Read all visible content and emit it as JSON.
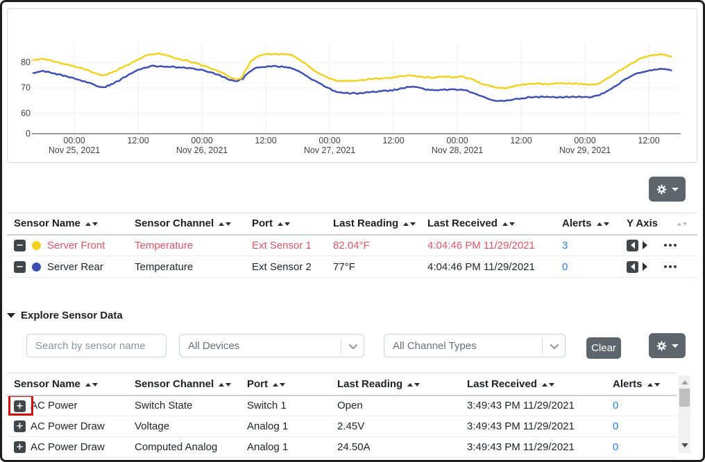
{
  "colors": {
    "series_front": "#f3d11f",
    "series_rear": "#3d4eb5",
    "alert_red": "#e25563",
    "link_blue": "#2680e3",
    "button_gray": "#5d656d",
    "highlight_red": "#cf0e0e"
  },
  "chart_data": {
    "type": "line",
    "title": "",
    "xlabel": "",
    "ylabel": "",
    "y_unit": "°F",
    "grid": true,
    "legend_position": "none (table below acts as legend)",
    "y_ticks": [
      80,
      70,
      60,
      0
    ],
    "x_ticks": [
      {
        "t": 7.7,
        "time": "00:00",
        "date": "Nov 25, 2021"
      },
      {
        "t": 19.7,
        "time": "12:00",
        "date": ""
      },
      {
        "t": 31.7,
        "time": "00:00",
        "date": "Nov 26, 2021"
      },
      {
        "t": 43.7,
        "time": "12:00",
        "date": ""
      },
      {
        "t": 55.7,
        "time": "00:00",
        "date": "Nov 27, 2021"
      },
      {
        "t": 67.7,
        "time": "12:00",
        "date": ""
      },
      {
        "t": 79.7,
        "time": "00:00",
        "date": "Nov 28, 2021"
      },
      {
        "t": 91.7,
        "time": "12:00",
        "date": ""
      },
      {
        "t": 103.7,
        "time": "00:00",
        "date": "Nov 29, 2021"
      },
      {
        "t": 115.7,
        "time": "12:00",
        "date": ""
      }
    ],
    "series": [
      {
        "name": "Server Front",
        "color": "#f3d11f",
        "points": [
          [
            0,
            80.6
          ],
          [
            1.8,
            81.4
          ],
          [
            4,
            80.1
          ],
          [
            6.5,
            78.9
          ],
          [
            9,
            77.6
          ],
          [
            11,
            76.2
          ],
          [
            12.7,
            74.8
          ],
          [
            13.6,
            74.9
          ],
          [
            15,
            76.1
          ],
          [
            17,
            78.2
          ],
          [
            19,
            80.3
          ],
          [
            21,
            82.4
          ],
          [
            22.3,
            83.1
          ],
          [
            24,
            83.2
          ],
          [
            26.7,
            81.6
          ],
          [
            29,
            80.4
          ],
          [
            31.2,
            79.1
          ],
          [
            33.4,
            77.5
          ],
          [
            35.5,
            75.8
          ],
          [
            37,
            74.0
          ],
          [
            38.1,
            73.3
          ],
          [
            39,
            73.6
          ],
          [
            40,
            77.0
          ],
          [
            41,
            80.5
          ],
          [
            42.4,
            82.5
          ],
          [
            43.7,
            83.0
          ],
          [
            45,
            83.1
          ],
          [
            47,
            83.0
          ],
          [
            48.5,
            82.7
          ],
          [
            49.8,
            81.4
          ],
          [
            52.4,
            77.3
          ],
          [
            55,
            74.1
          ],
          [
            57,
            72.7
          ],
          [
            59,
            72.5
          ],
          [
            60.7,
            72.6
          ],
          [
            62.9,
            73.2
          ],
          [
            65,
            73.5
          ],
          [
            67.2,
            73.8
          ],
          [
            69,
            74.3
          ],
          [
            70.7,
            74.8
          ],
          [
            72.5,
            74.3
          ],
          [
            74.6,
            74.0
          ],
          [
            76.5,
            74.1
          ],
          [
            78.5,
            74.2
          ],
          [
            80.8,
            74.1
          ],
          [
            82.5,
            73.2
          ],
          [
            84.5,
            71.3
          ],
          [
            86.8,
            69.9
          ],
          [
            88.6,
            69.7
          ],
          [
            90.5,
            70.6
          ],
          [
            92.9,
            71.4
          ],
          [
            95,
            71.5
          ],
          [
            97,
            71.4
          ],
          [
            99,
            71.6
          ],
          [
            101,
            71.5
          ],
          [
            103,
            71.4
          ],
          [
            105.5,
            71.1
          ],
          [
            107,
            72.3
          ],
          [
            108.5,
            74.2
          ],
          [
            110,
            76.3
          ],
          [
            111.5,
            78.3
          ],
          [
            113,
            80.2
          ],
          [
            114.5,
            81.6
          ],
          [
            116,
            82.5
          ],
          [
            117.5,
            82.9
          ],
          [
            118.5,
            83.0
          ],
          [
            119.9,
            82.2
          ]
        ]
      },
      {
        "name": "Server Rear",
        "color": "#3d4eb5",
        "points": [
          [
            0,
            75.9
          ],
          [
            2.2,
            76.4
          ],
          [
            4,
            75.5
          ],
          [
            6,
            74.4
          ],
          [
            8,
            73.3
          ],
          [
            10,
            72.1
          ],
          [
            11.5,
            71.0
          ],
          [
            12.7,
            70.0
          ],
          [
            13.6,
            70.2
          ],
          [
            15,
            71.5
          ],
          [
            17,
            73.8
          ],
          [
            19,
            76.2
          ],
          [
            20.5,
            77.6
          ],
          [
            22,
            78.4
          ],
          [
            24,
            78.2
          ],
          [
            26.5,
            78.0
          ],
          [
            29,
            77.6
          ],
          [
            31.2,
            77.1
          ],
          [
            33.4,
            75.9
          ],
          [
            35.5,
            74.3
          ],
          [
            37.3,
            72.7
          ],
          [
            38.2,
            72.4
          ],
          [
            39.4,
            73.5
          ],
          [
            40.5,
            76.0
          ],
          [
            41.8,
            77.8
          ],
          [
            43.7,
            78.2
          ],
          [
            45.5,
            78.3
          ],
          [
            47.5,
            78.1
          ],
          [
            49.8,
            76.5
          ],
          [
            52.4,
            73.2
          ],
          [
            55,
            70.2
          ],
          [
            57,
            68.2
          ],
          [
            59,
            67.8
          ],
          [
            61,
            67.7
          ],
          [
            63,
            68.2
          ],
          [
            65,
            68.5
          ],
          [
            67.5,
            68.9
          ],
          [
            69.5,
            69.8
          ],
          [
            71.1,
            70.4
          ],
          [
            73,
            69.5
          ],
          [
            74.6,
            68.9
          ],
          [
            76.5,
            69.1
          ],
          [
            78.5,
            69.2
          ],
          [
            80.8,
            69.2
          ],
          [
            82.5,
            68.0
          ],
          [
            84.5,
            66.2
          ],
          [
            86.8,
            64.8
          ],
          [
            88.5,
            64.6
          ],
          [
            90.5,
            65.3
          ],
          [
            93,
            66.1
          ],
          [
            95,
            66.2
          ],
          [
            97,
            66.3
          ],
          [
            99,
            66.2
          ],
          [
            101,
            66.3
          ],
          [
            103,
            66.3
          ],
          [
            105,
            66.2
          ],
          [
            106.5,
            67.0
          ],
          [
            108,
            68.8
          ],
          [
            109.5,
            70.8
          ],
          [
            111,
            72.8
          ],
          [
            112.5,
            74.5
          ],
          [
            114,
            75.9
          ],
          [
            115.5,
            76.7
          ],
          [
            117,
            77.2
          ],
          [
            118,
            77.3
          ],
          [
            119.9,
            76.8
          ]
        ]
      }
    ]
  },
  "graphed_table": {
    "headers": [
      {
        "label": "Sensor Name",
        "sortable": true
      },
      {
        "label": "Sensor Channel",
        "sortable": true
      },
      {
        "label": "Port",
        "sortable": true
      },
      {
        "label": "Last Reading",
        "sortable": true
      },
      {
        "label": "Last Received",
        "sortable": true
      },
      {
        "label": "Alerts",
        "sortable": true
      },
      {
        "label": "Y Axis",
        "sortable": true
      }
    ],
    "rows": [
      {
        "icon": "minus",
        "dot_color": "#f3d11f",
        "name": "Server Front",
        "channel": "Temperature",
        "port": "Ext Sensor 1",
        "last_reading": "82.04°F",
        "last_received": "4:04:46 PM 11/29/2021",
        "alerts": "3",
        "alert_state": true
      },
      {
        "icon": "minus",
        "dot_color": "#3d4eb5",
        "name": "Server Rear",
        "channel": "Temperature",
        "port": "Ext Sensor 2",
        "last_reading": "77°F",
        "last_received": "4:04:46 PM 11/29/2021",
        "alerts": "0",
        "alert_state": false
      }
    ]
  },
  "explore": {
    "title": "Explore Sensor Data",
    "search_placeholder": "Search by sensor name",
    "devices_filter": "All Devices",
    "channel_filter": "All Channel Types",
    "clear_label": "Clear"
  },
  "explore_table": {
    "headers": [
      {
        "label": "Sensor Name",
        "sortable": true
      },
      {
        "label": "Sensor Channel",
        "sortable": true
      },
      {
        "label": "Port",
        "sortable": true
      },
      {
        "label": "Last Reading",
        "sortable": true
      },
      {
        "label": "Last Received",
        "sortable": true
      },
      {
        "label": "Alerts",
        "sortable": true
      }
    ],
    "rows": [
      {
        "icon": "plus",
        "highlighted": true,
        "name": "AC Power",
        "channel": "Switch State",
        "port": "Switch 1",
        "last_reading": "Open",
        "last_received": "3:49:43 PM 11/29/2021",
        "alerts": "0"
      },
      {
        "icon": "plus",
        "highlighted": false,
        "name": "AC Power Draw",
        "channel": "Voltage",
        "port": "Analog 1",
        "last_reading": "2.45V",
        "last_received": "3:49:43 PM 11/29/2021",
        "alerts": "0"
      },
      {
        "icon": "plus",
        "highlighted": false,
        "name": "AC Power Draw",
        "channel": "Computed Analog",
        "port": "Analog 1",
        "last_reading": "24.50A",
        "last_received": "3:49:43 PM 11/29/2021",
        "alerts": "0"
      }
    ]
  }
}
